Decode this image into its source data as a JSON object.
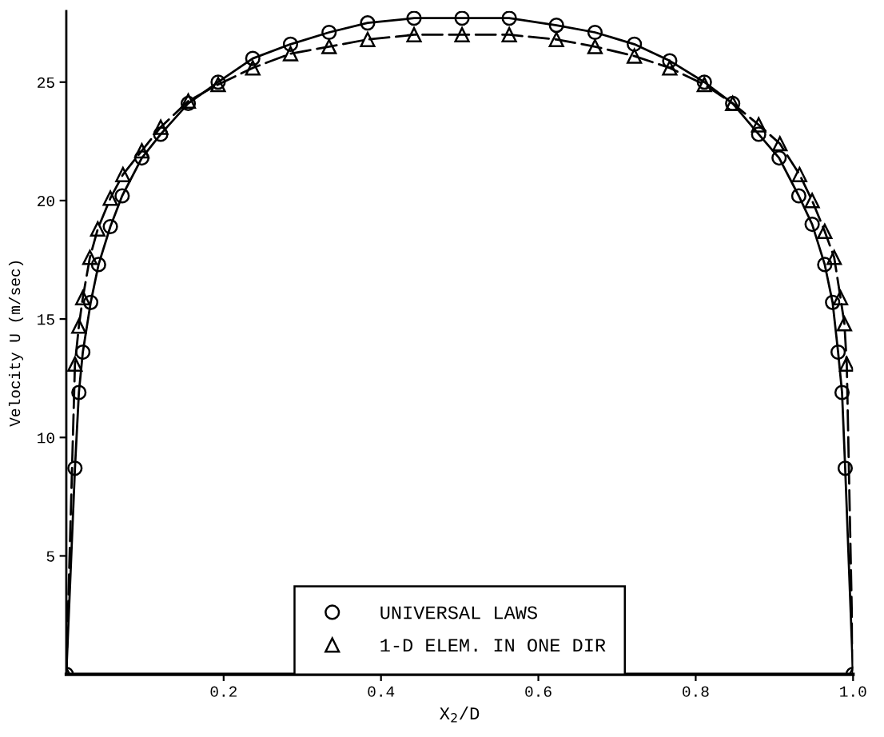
{
  "chart_data": {
    "type": "line",
    "xlabel": "X$_{2}$/D",
    "ylabel": "Velocity U (m/sec)",
    "xlim": [
      0,
      1
    ],
    "xticks": [
      0.2,
      0.4,
      0.6,
      0.8,
      {
        "value": 1,
        "label": "1.0"
      }
    ],
    "ylim": [
      0,
      28
    ],
    "yticks": [
      5,
      10,
      15,
      20,
      25
    ],
    "grid": false,
    "legend": "bottom",
    "series": [
      {
        "name": "UNIVERSAL LAWS",
        "color": "#000000",
        "marker": "circle",
        "line_style": "solid",
        "x": [
          0,
          0.011,
          0.016,
          0.021,
          0.031,
          0.041,
          0.056,
          0.071,
          0.096,
          0.12,
          0.155,
          0.193,
          0.237,
          0.285,
          0.334,
          0.383,
          0.442,
          0.503,
          0.563,
          0.623,
          0.672,
          0.722,
          0.767,
          0.811,
          0.847,
          0.88,
          0.906,
          0.931,
          0.948,
          0.964,
          0.974,
          0.981,
          0.986,
          0.99,
          1
        ],
        "values": [
          0,
          8.7,
          11.9,
          13.6,
          15.7,
          17.3,
          18.9,
          20.2,
          21.8,
          22.8,
          24.1,
          25.0,
          26.0,
          26.6,
          27.1,
          27.5,
          27.7,
          27.7,
          27.7,
          27.4,
          27.1,
          26.6,
          25.9,
          25.0,
          24.1,
          22.8,
          21.8,
          20.2,
          19.0,
          17.3,
          15.7,
          13.6,
          11.9,
          8.7,
          0
        ]
      },
      {
        "name": "1-D ELEM. IN ONE DIR",
        "color": "#000000",
        "marker": "triangle",
        "line_style": "dashed",
        "x": [
          0,
          0.011,
          0.016,
          0.021,
          0.03,
          0.04,
          0.056,
          0.072,
          0.096,
          0.12,
          0.155,
          0.193,
          0.237,
          0.285,
          0.334,
          0.383,
          0.442,
          0.503,
          0.563,
          0.623,
          0.672,
          0.722,
          0.767,
          0.811,
          0.847,
          0.88,
          0.907,
          0.932,
          0.948,
          0.964,
          0.976,
          0.984,
          0.989,
          0.992,
          1
        ],
        "values": [
          0,
          13.1,
          14.7,
          15.9,
          17.6,
          18.8,
          20.1,
          21.1,
          22.1,
          23.1,
          24.2,
          24.9,
          25.6,
          26.2,
          26.5,
          26.8,
          27.0,
          27.0,
          27.0,
          26.8,
          26.5,
          26.1,
          25.6,
          24.9,
          24.1,
          23.2,
          22.4,
          21.1,
          20.0,
          18.7,
          17.6,
          15.9,
          14.8,
          13.1,
          0
        ]
      }
    ]
  }
}
